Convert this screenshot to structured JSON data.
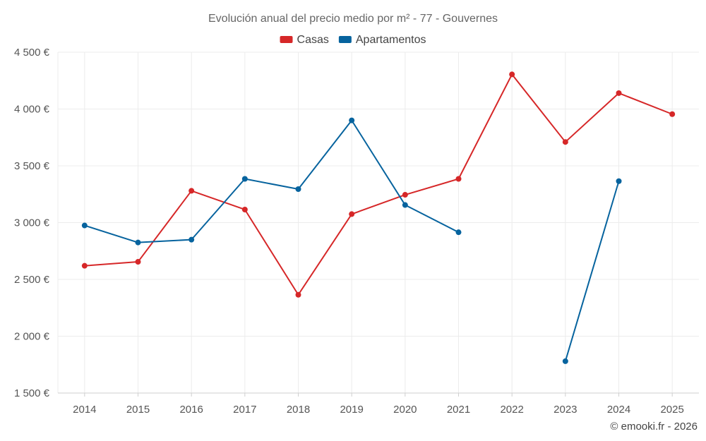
{
  "chart_data": {
    "type": "line",
    "title": "Evolución anual del precio medio por m² - 77 - Gouvernes",
    "categories": [
      "2014",
      "2015",
      "2016",
      "2017",
      "2018",
      "2019",
      "2020",
      "2021",
      "2022",
      "2023",
      "2024",
      "2025"
    ],
    "series": [
      {
        "name": "Casas",
        "color": "#d62728",
        "values": [
          2620,
          2655,
          3280,
          3115,
          2365,
          3075,
          3245,
          3385,
          4305,
          3710,
          4140,
          3955
        ]
      },
      {
        "name": "Apartamentos",
        "color": "#06639e",
        "values": [
          2975,
          2825,
          2850,
          3385,
          3295,
          3900,
          3155,
          2915,
          null,
          1780,
          3365,
          null
        ]
      }
    ],
    "ylim": [
      1500,
      4500
    ],
    "yticks": [
      1500,
      2000,
      2500,
      3000,
      3500,
      4000,
      4500
    ],
    "ytick_labels": [
      "1 500 €",
      "2 000 €",
      "2 500 €",
      "3 000 €",
      "3 500 €",
      "4 000 €",
      "4 500 €"
    ],
    "xlabel": "",
    "ylabel": "",
    "legend": "top-center",
    "credit": "© emooki.fr - 2026"
  }
}
